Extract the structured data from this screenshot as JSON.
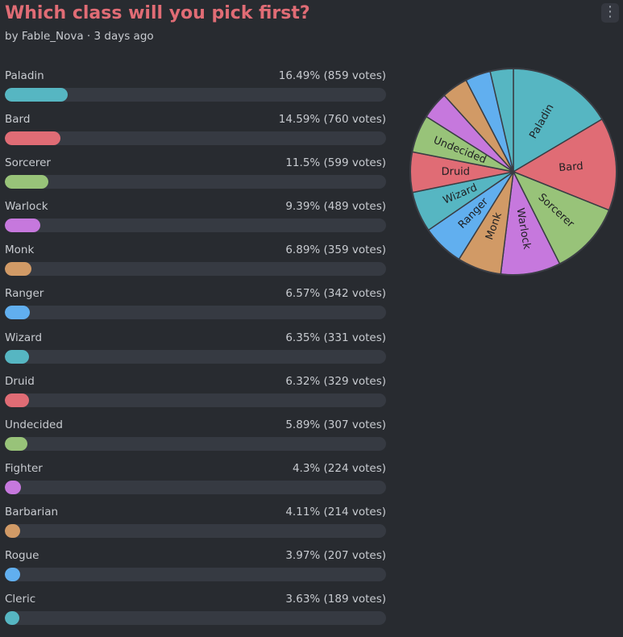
{
  "poll": {
    "title": "Which class will you pick first?",
    "byline": "by Fable_Nova · 3 days ago",
    "menu_icon": "⋮"
  },
  "chart_data": {
    "type": "pie",
    "title": "Which class will you pick first?",
    "categories": [
      "Paladin",
      "Bard",
      "Sorcerer",
      "Warlock",
      "Monk",
      "Ranger",
      "Wizard",
      "Druid",
      "Undecided",
      "Fighter",
      "Barbarian",
      "Rogue",
      "Cleric"
    ],
    "values": [
      859,
      760,
      599,
      489,
      359,
      342,
      331,
      329,
      307,
      224,
      214,
      207,
      189
    ],
    "percents": [
      16.49,
      14.59,
      11.5,
      9.39,
      6.89,
      6.57,
      6.35,
      6.32,
      5.89,
      4.3,
      4.11,
      3.97,
      3.63
    ],
    "stat_labels": [
      "16.49% (859 votes)",
      "14.59% (760 votes)",
      "11.5% (599 votes)",
      "9.39% (489 votes)",
      "6.89% (359 votes)",
      "6.57% (342 votes)",
      "6.35% (331 votes)",
      "6.32% (329 votes)",
      "5.89% (307 votes)",
      "4.3% (224 votes)",
      "4.11% (214 votes)",
      "3.97% (207 votes)",
      "3.63% (189 votes)"
    ],
    "slice_labels": [
      "Paladin",
      "Bard",
      "Sorcerer",
      "Warlock",
      "Monk",
      "Ranger",
      "Wizard",
      "Druid",
      "Undecided",
      "",
      "",
      "",
      ""
    ],
    "colors": [
      "#56b6c2",
      "#e06c75",
      "#98c379",
      "#c678dd",
      "#d19a66",
      "#61afef",
      "#56b6c2",
      "#e06c75",
      "#98c379",
      "#c678dd",
      "#d19a66",
      "#61afef",
      "#56b6c2"
    ],
    "start_angle_deg": 0,
    "direction": "clockwise",
    "legend": "none"
  }
}
